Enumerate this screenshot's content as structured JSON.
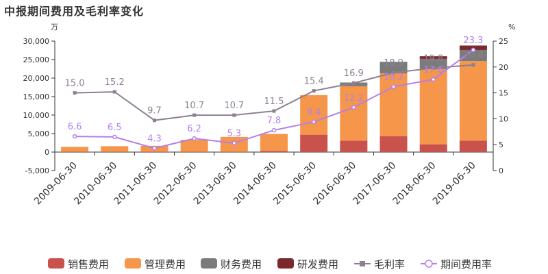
{
  "chart_data": {
    "type": "bar",
    "title": "中报期间费用及毛利率变化",
    "left_unit": "万",
    "right_unit": "%",
    "categories": [
      "2009-06-30",
      "2010-06-30",
      "2011-06-30",
      "2012-06-30",
      "2013-06-30",
      "2014-06-30",
      "2015-06-30",
      "2016-06-30",
      "2017-06-30",
      "2018-06-30",
      "2019-06-30"
    ],
    "ylim_left": [
      -5000,
      30000
    ],
    "left_ticks": [
      -5000,
      0,
      5000,
      10000,
      15000,
      20000,
      25000,
      30000
    ],
    "left_tick_labels": [
      "-5,000",
      "0",
      "5,000",
      "10,000",
      "15,000",
      "20,000",
      "25,000",
      "30,000"
    ],
    "ylim_right": [
      0,
      25
    ],
    "right_ticks": [
      0,
      5,
      10,
      15,
      20,
      25
    ],
    "right_tick_labels": [
      "0",
      "5",
      "10",
      "15",
      "20",
      "25"
    ],
    "stacked": true,
    "series": [
      {
        "name": "销售费用",
        "type": "bar",
        "axis": "left",
        "color": "#c9524d",
        "values": [
          100,
          100,
          100,
          100,
          100,
          300,
          4700,
          3100,
          4300,
          2100,
          3100
        ]
      },
      {
        "name": "管理费用",
        "type": "bar",
        "axis": "left",
        "color": "#f5964b",
        "values": [
          1300,
          1500,
          1600,
          3200,
          4000,
          4600,
          10700,
          14700,
          17000,
          20300,
          21500
        ]
      },
      {
        "name": "财务费用",
        "type": "bar",
        "axis": "left",
        "color": "#7b7b7b",
        "values": [
          0,
          0,
          0,
          0,
          0,
          0,
          0,
          1000,
          3100,
          2800,
          3000
        ]
      },
      {
        "name": "研发费用",
        "type": "bar",
        "axis": "left",
        "color": "#7a2a2a",
        "values": [
          0,
          0,
          0,
          0,
          0,
          0,
          0,
          0,
          0,
          700,
          1200
        ]
      },
      {
        "name": "毛利率",
        "type": "line",
        "axis": "right",
        "color": "#8c7f90",
        "values": [
          15.0,
          15.2,
          9.7,
          10.7,
          10.7,
          11.5,
          15.4,
          16.9,
          18.9,
          19.8,
          20.4
        ],
        "labels": [
          "15.0",
          "15.2",
          "9.7",
          "10.7",
          "10.7",
          "11.5",
          "15.4",
          "16.9",
          "18.9",
          "19.8",
          "20.4"
        ]
      },
      {
        "name": "期间费用率",
        "type": "line",
        "axis": "right",
        "color": "#b37feb",
        "values": [
          6.6,
          6.5,
          4.3,
          6.2,
          5.3,
          7.8,
          9.4,
          12.2,
          16.2,
          17.6,
          23.3
        ],
        "labels": [
          "6.6",
          "6.5",
          "4.3",
          "6.2",
          "5.3",
          "7.8",
          "9.4",
          "12.2",
          "16.2",
          "17.6",
          "23.3"
        ]
      }
    ],
    "legend_position": "bottom",
    "grid": false
  }
}
